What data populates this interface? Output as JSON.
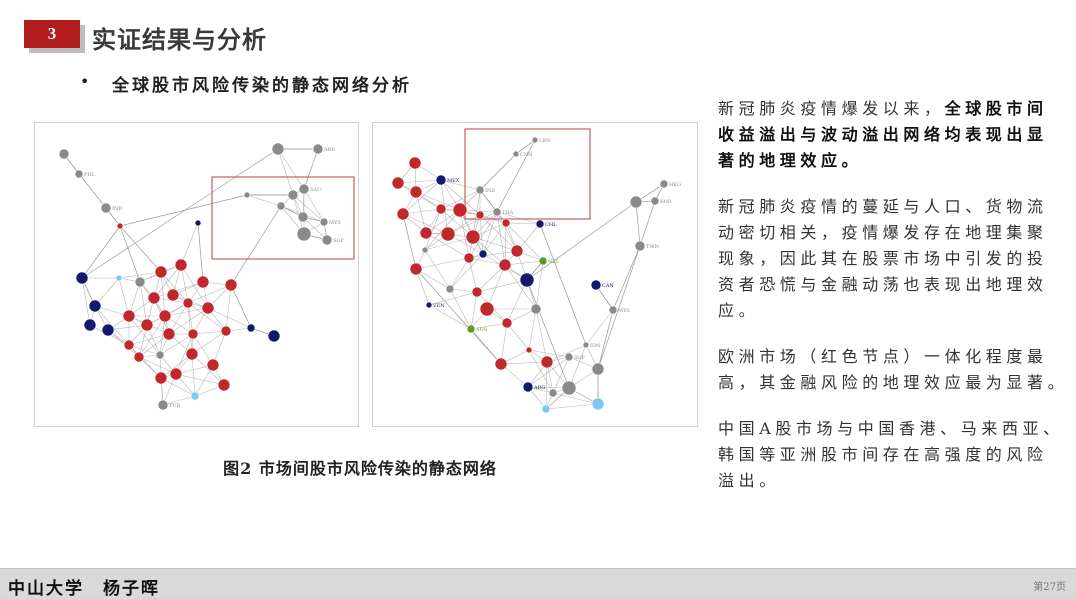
{
  "header": {
    "section_number": "3",
    "title": "实证结果与分析"
  },
  "bullet": {
    "text": "全球股市风险传染的静态网络分析"
  },
  "figure": {
    "caption": "图2 市场间股市风险传染的静态网络",
    "node_colors": {
      "europe": "#c0282b",
      "americas": "#16186e",
      "light": "#7cc8f2",
      "other": "#8a8a8a",
      "oceania": "#5e9a2a"
    },
    "highlight_color": "#c9605e",
    "left_labels": {
      "l_phl": "PHL",
      "l_ind": "IND",
      "l_sau": "SAU",
      "l_mys": "MYS",
      "l_sgp": "SGP",
      "l_are": "ARE",
      "l_tur": "TUR"
    },
    "right_labels": {
      "r_lbn": "LBN",
      "r_chn": "CHN",
      "r_ind": "IND",
      "r_tha": "THA",
      "r_mex": "MEX",
      "r_chl": "CHL",
      "r_nzl": "NZL",
      "r_can": "CAN",
      "r_mys": "MYS",
      "r_idn": "IDN",
      "r_sgp": "SGP",
      "r_hkg": "HKG",
      "r_kor": "KOR",
      "r_twn": "TWN",
      "r_arg": "ARG",
      "r_ven": "VEN",
      "r_aus": "AUS"
    }
  },
  "text": {
    "p1": {
      "normal": "新冠肺炎疫情爆发以来，",
      "bold1": "全球股市间",
      "bold2": "收益溢出与波动溢出网络均表现出显",
      "bold3": "著的地理效应。"
    },
    "p2": [
      "新冠肺炎疫情的蔓延与人口、货物流",
      "动密切相关，疫情爆发存在地理集聚",
      "现象，因此其在股票市场中引发的投",
      "资者恐慌与金融动荡也表现出地理效",
      "应。"
    ],
    "p3": [
      "欧洲市场（红色节点）一体化程度最",
      "高，其金融风险的地理效应最为显著。"
    ],
    "p4": [
      "中国A股市场与中国香港、马来西亚、",
      "韩国等亚洲股市间存在高强度的风险",
      "溢出。"
    ]
  },
  "footer": {
    "author": "中山大学　杨子晖",
    "page": "第27页"
  }
}
